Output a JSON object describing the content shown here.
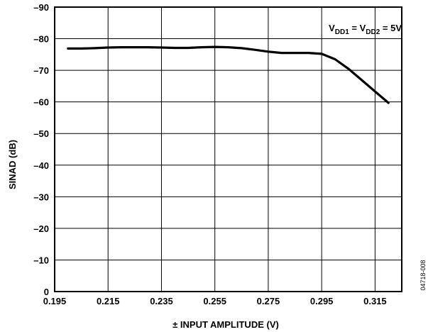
{
  "chart_data": {
    "type": "line",
    "xlabel": "± INPUT AMPLITUDE (V)",
    "ylabel": "SINAD (dB)",
    "xlim": [
      0.195,
      0.325
    ],
    "ylim": [
      0,
      -90
    ],
    "x_ticks": [
      "0.195",
      "0.215",
      "0.235",
      "0.255",
      "0.275",
      "0.295",
      "0.315"
    ],
    "y_ticks": [
      "0",
      "–10",
      "–20",
      "–30",
      "–40",
      "–50",
      "–60",
      "–70",
      "–80",
      "–90"
    ],
    "grid": true,
    "annotation": {
      "prefix": "V",
      "sub1": "DD1",
      "mid": " = V",
      "sub2": "DD2",
      "suffix": " = 5V"
    },
    "figure_id": "04718-008",
    "series": [
      {
        "x": [
          0.2,
          0.205,
          0.21,
          0.215,
          0.22,
          0.225,
          0.23,
          0.235,
          0.24,
          0.245,
          0.25,
          0.255,
          0.26,
          0.265,
          0.27,
          0.275,
          0.28,
          0.285,
          0.29,
          0.295,
          0.3,
          0.305,
          0.31,
          0.315,
          0.32
        ],
        "y": [
          -76.9,
          -76.9,
          -77.0,
          -77.2,
          -77.3,
          -77.3,
          -77.3,
          -77.2,
          -77.1,
          -77.1,
          -77.3,
          -77.4,
          -77.3,
          -77.0,
          -76.5,
          -75.9,
          -75.5,
          -75.5,
          -75.5,
          -75.2,
          -73.5,
          -70.5,
          -66.9,
          -63.3,
          -59.7
        ]
      }
    ]
  }
}
